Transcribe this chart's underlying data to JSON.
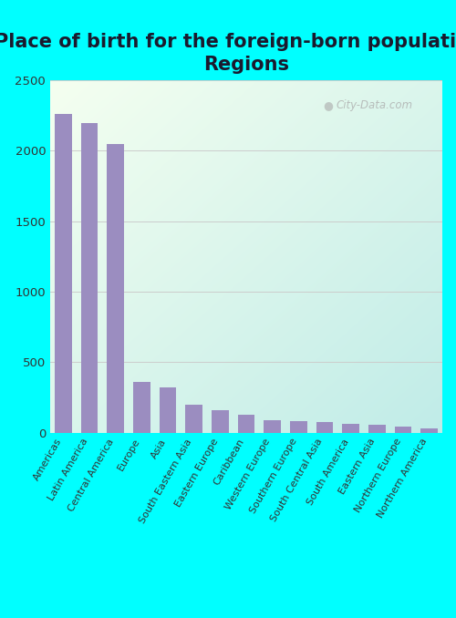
{
  "title": "Place of birth for the foreign-born population -\nRegions",
  "categories": [
    "Americas",
    "Latin America",
    "Central America",
    "Europe",
    "Asia",
    "South Eastern Asia",
    "Eastern Europe",
    "Caribbean",
    "Western Europe",
    "Southern Europe",
    "South Central Asia",
    "South America",
    "Eastern Asia",
    "Northern Europe",
    "Northern America"
  ],
  "values": [
    2260,
    2200,
    2050,
    360,
    320,
    195,
    160,
    130,
    90,
    80,
    75,
    65,
    55,
    45,
    30
  ],
  "bar_color": "#9b8dc0",
  "outer_bg": "#00ffff",
  "ylim": [
    0,
    2500
  ],
  "yticks": [
    0,
    500,
    1000,
    1500,
    2000,
    2500
  ],
  "title_fontsize": 15,
  "title_color": "#1a1a2e",
  "tick_color": "#333333",
  "grid_color": "#cccccc",
  "watermark": "City-Data.com",
  "bg_topleft": "#f5fff0",
  "bg_bottomright": "#c0ece8"
}
